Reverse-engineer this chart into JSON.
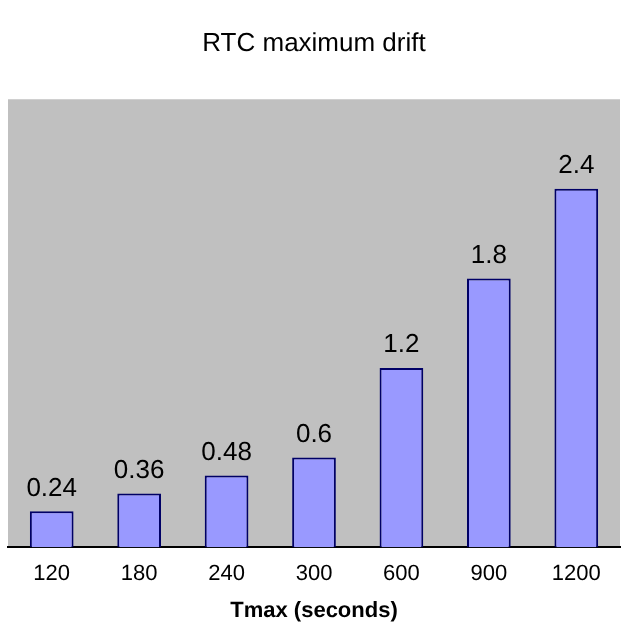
{
  "chart_data": {
    "type": "bar",
    "title": "RTC maximum drift",
    "xlabel": "Tmax (seconds)",
    "categories": [
      "120",
      "180",
      "240",
      "300",
      "600",
      "900",
      "1200"
    ],
    "values": [
      0.24,
      0.36,
      0.48,
      0.6,
      1.2,
      1.8,
      2.4
    ],
    "color": "#9999ff",
    "tick_labels": "x",
    "data_labels": true
  }
}
